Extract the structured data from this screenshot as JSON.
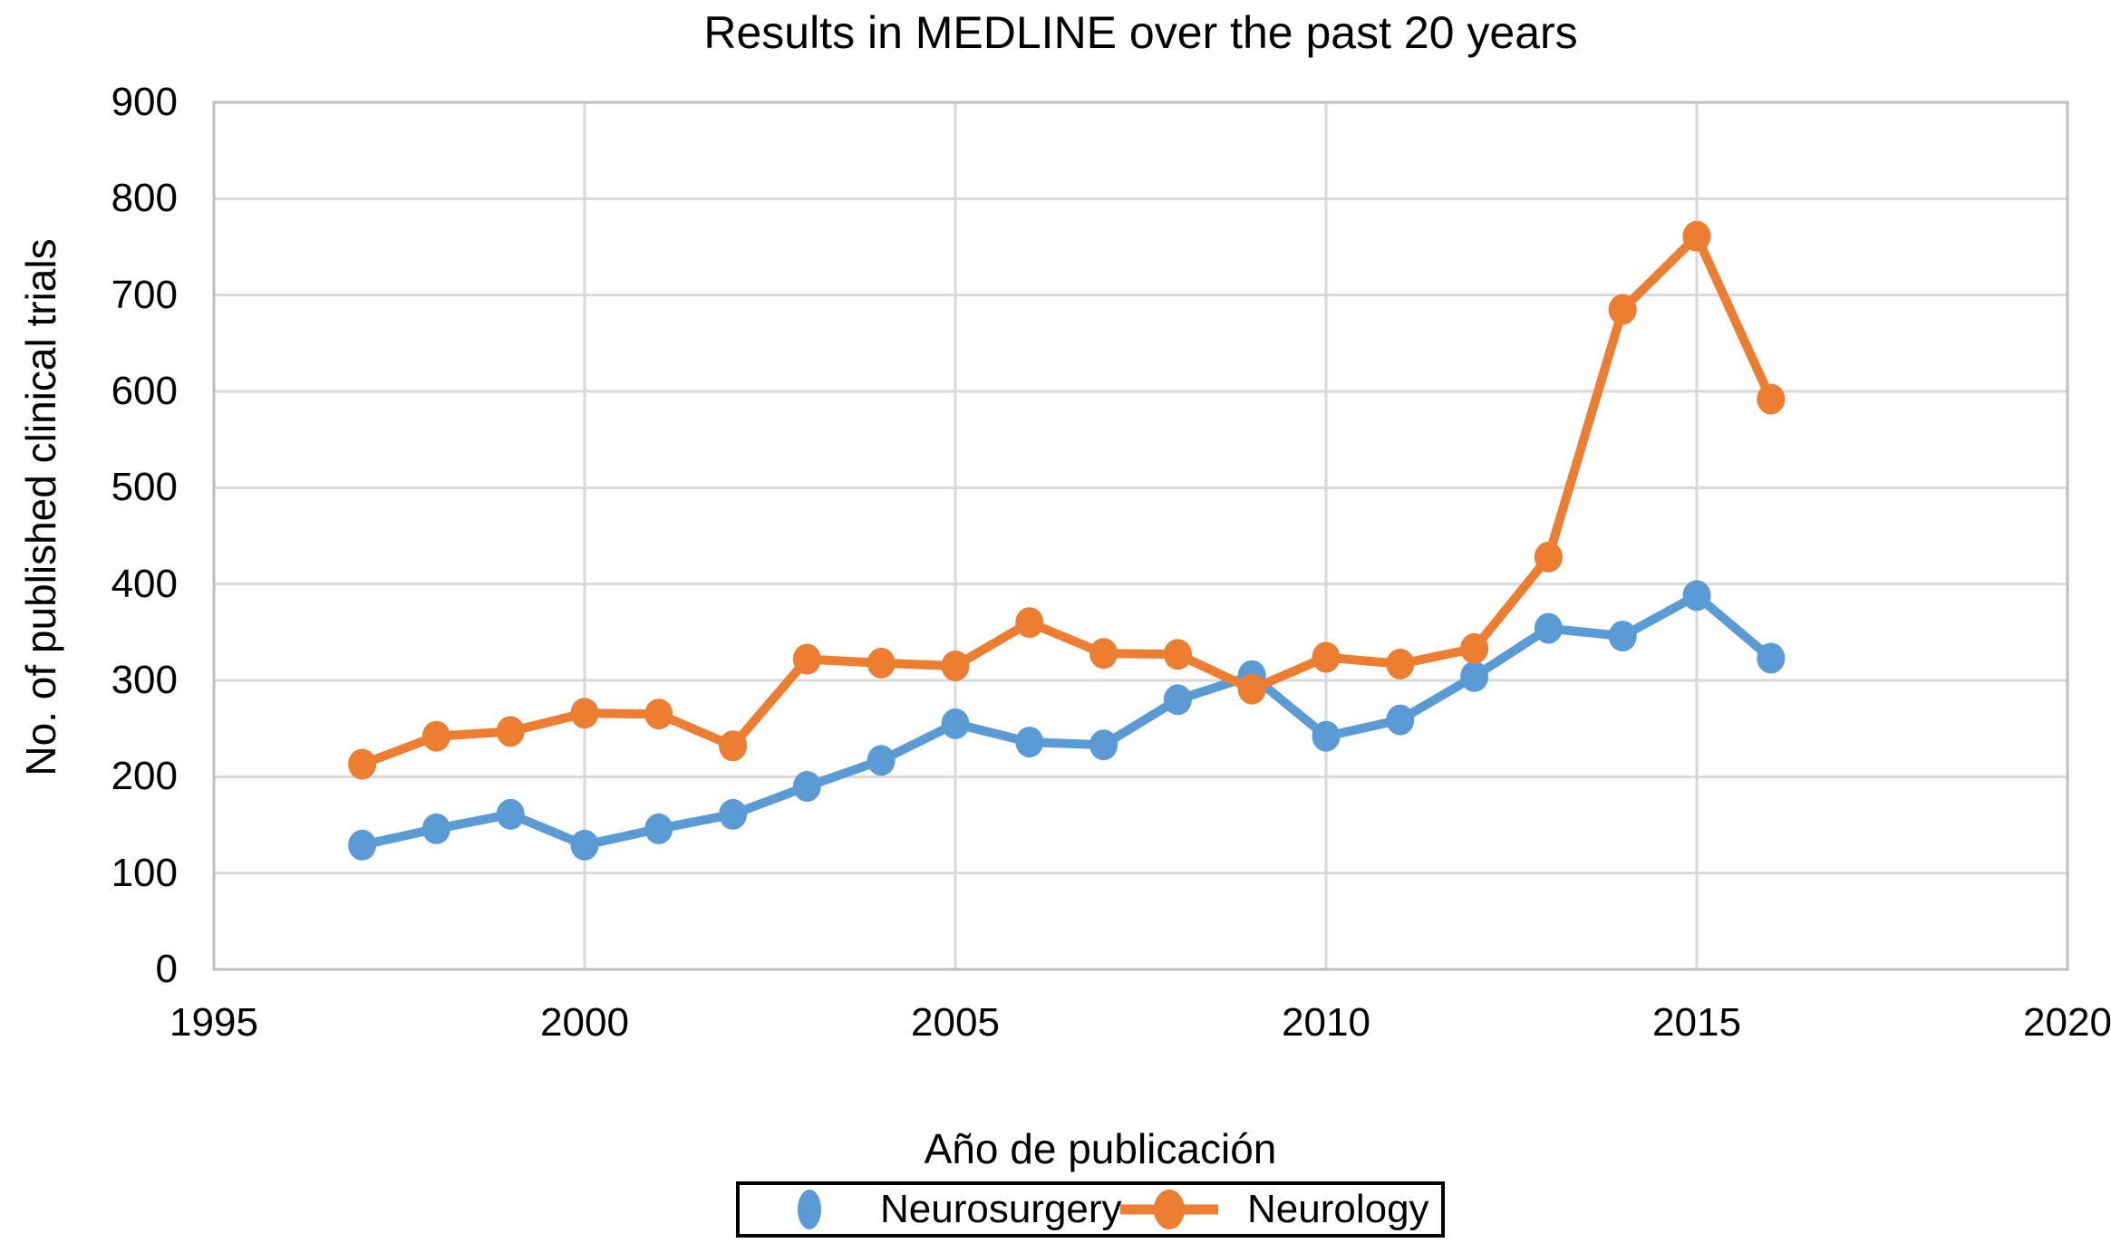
{
  "chart": {
    "title": "Results in MEDLINE over the past 20 years",
    "x_axis_title": "Año de publicación",
    "y_axis_title": "No. of published clinical trials"
  },
  "chart_data": {
    "type": "line",
    "title": "Results in MEDLINE over the past 20 years",
    "xlabel": "Año de publicación",
    "ylabel": "No. of published clinical trials",
    "x": [
      1997,
      1998,
      1999,
      2000,
      2001,
      2002,
      2003,
      2004,
      2005,
      2006,
      2007,
      2008,
      2009,
      2010,
      2011,
      2012,
      2013,
      2014,
      2015,
      2016
    ],
    "series": [
      {
        "name": "Neurosurgery",
        "color": "#5B9BD5",
        "values": [
          129,
          146,
          161,
          129,
          146,
          161,
          190,
          217,
          255,
          236,
          233,
          280,
          305,
          242,
          259,
          304,
          354,
          346,
          388,
          323
        ]
      },
      {
        "name": "Neurology",
        "color": "#ED7D31",
        "values": [
          213,
          242,
          247,
          266,
          265,
          232,
          322,
          318,
          315,
          360,
          328,
          327,
          291,
          324,
          317,
          333,
          428,
          685,
          761,
          592
        ]
      }
    ],
    "xlim": [
      1995,
      2020
    ],
    "ylim": [
      0,
      900
    ],
    "x_ticks": [
      1995,
      2000,
      2005,
      2010,
      2015,
      2020
    ],
    "y_ticks": [
      0,
      100,
      200,
      300,
      400,
      500,
      600,
      700,
      800,
      900
    ],
    "grid": true,
    "legend_position": "bottom",
    "gridline_color": "#D9D9D9",
    "border_color": "#BFBFBF",
    "background": "#FFFFFF",
    "text_color": "#000000"
  },
  "legend": {
    "items": [
      {
        "label": "Neurosurgery",
        "marker": "dot"
      },
      {
        "label": "Neurology",
        "marker": "line-dot"
      }
    ]
  }
}
